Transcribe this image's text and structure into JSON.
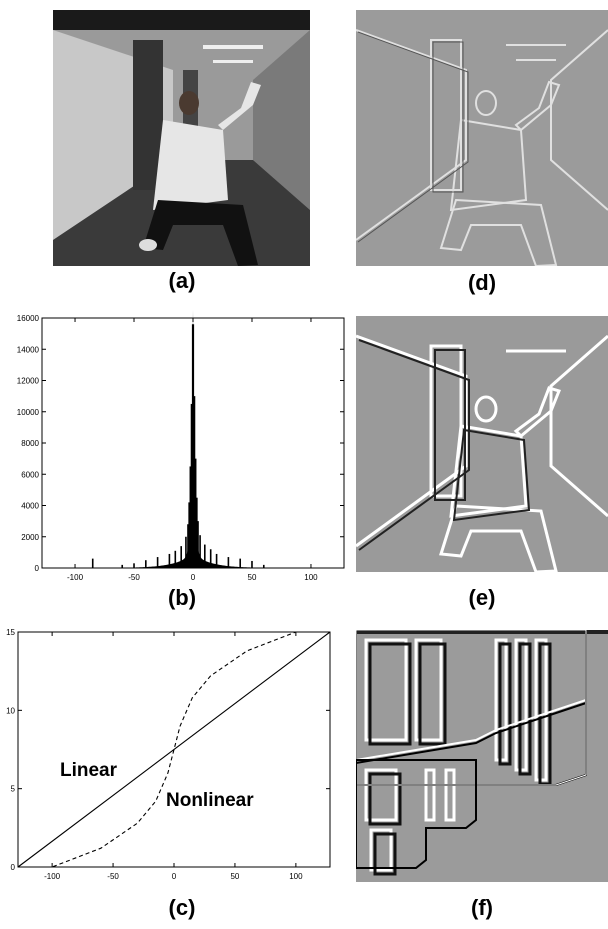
{
  "captions": {
    "a": "(a)",
    "b": "(b)",
    "c": "(c)",
    "d": "(d)",
    "e": "(e)",
    "f": "(f)"
  },
  "chart_data": [
    {
      "type": "bar",
      "panel": "b",
      "x_ticks": [
        -100,
        -50,
        0,
        50,
        100
      ],
      "y_ticks": [
        0,
        2000,
        4000,
        6000,
        8000,
        10000,
        12000,
        14000,
        16000
      ],
      "xlim": [
        -128,
        128
      ],
      "ylim": [
        0,
        16000
      ],
      "x": [
        -85,
        -60,
        -50,
        -40,
        -30,
        -20,
        -15,
        -10,
        -6,
        -4,
        -3,
        -2,
        -1,
        0,
        1,
        2,
        3,
        4,
        6,
        10,
        15,
        20,
        30,
        40,
        50,
        60
      ],
      "values": [
        600,
        200,
        300,
        500,
        700,
        900,
        1100,
        1400,
        2000,
        2800,
        4200,
        6500,
        10500,
        15600,
        11000,
        7000,
        4500,
        3000,
        2100,
        1500,
        1200,
        900,
        700,
        600,
        450,
        200
      ]
    },
    {
      "type": "line",
      "panel": "c",
      "x_ticks": [
        -100,
        -50,
        0,
        50,
        100
      ],
      "y_ticks": [
        0,
        5,
        10,
        15
      ],
      "xlim": [
        -128,
        128
      ],
      "ylim": [
        0,
        15
      ],
      "series": [
        {
          "name": "Linear",
          "style": "solid",
          "x": [
            -128,
            128
          ],
          "y": [
            0,
            15
          ]
        },
        {
          "name": "Nonlinear",
          "style": "dashed",
          "x": [
            -128,
            -100,
            -60,
            -30,
            -15,
            -5,
            0,
            5,
            15,
            30,
            60,
            100,
            128
          ],
          "y": [
            0,
            0,
            1.2,
            2.8,
            4.2,
            6.0,
            7.5,
            9.0,
            10.8,
            12.2,
            13.8,
            15,
            15
          ]
        }
      ]
    }
  ]
}
